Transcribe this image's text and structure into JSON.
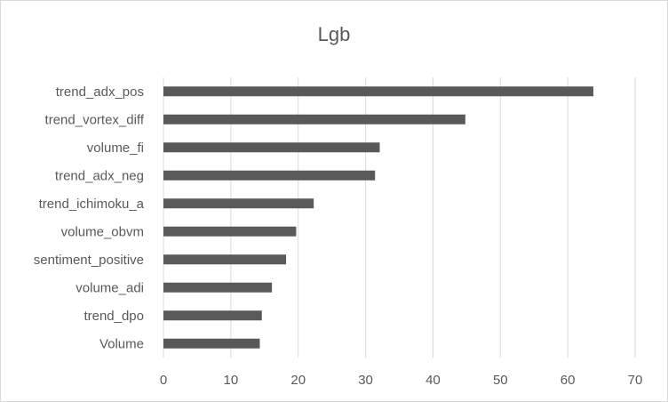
{
  "chart_data": {
    "type": "bar",
    "orientation": "horizontal",
    "title": "Lgb",
    "xlabel": "",
    "ylabel": "",
    "categories": [
      "trend_adx_pos",
      "trend_vortex_diff",
      "volume_fi",
      "trend_adx_neg",
      "trend_ichimoku_a",
      "volume_obvm",
      "sentiment_positive",
      "volume_adi",
      "trend_dpo",
      "Volume"
    ],
    "values": [
      63.8,
      44.8,
      32.1,
      31.4,
      22.3,
      19.7,
      18.2,
      16.1,
      14.6,
      14.3
    ],
    "xlim": [
      0,
      70
    ],
    "xticks": [
      "0",
      "10",
      "20",
      "30",
      "40",
      "50",
      "60",
      "70"
    ],
    "grid": "vertical",
    "legend": "none",
    "colors": {
      "bar": "#595959",
      "grid": "#d9d9d9",
      "text": "#595959"
    }
  }
}
